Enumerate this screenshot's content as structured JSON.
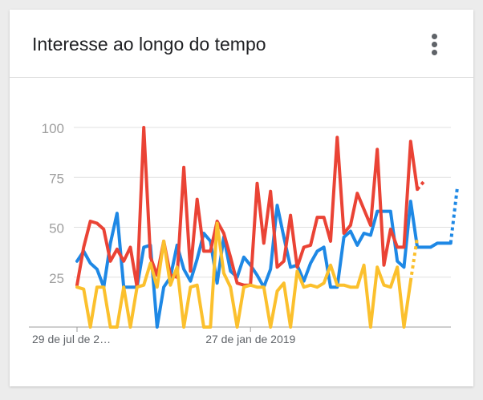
{
  "card": {
    "title": "Interesse ao longo do tempo",
    "menu_icon": "more-vert-icon"
  },
  "chart_data": {
    "type": "line",
    "title": "Interesse ao longo do tempo",
    "xlabel": "",
    "ylabel": "",
    "ylim": [
      0,
      100
    ],
    "yticks": [
      25,
      50,
      75,
      100
    ],
    "grid": true,
    "x_tick_labels": [
      {
        "index": 0,
        "label": "29 de jul de 2…"
      },
      {
        "index": 26,
        "label": "27 de jan de 2019"
      }
    ],
    "num_points": 58,
    "partial_last_point": true,
    "series": [
      {
        "color": "#1e88e5",
        "values": [
          33,
          38,
          32,
          29,
          20,
          42,
          57,
          20,
          20,
          20,
          40,
          41,
          0,
          20,
          25,
          41,
          29,
          23,
          34,
          47,
          43,
          22,
          45,
          28,
          25,
          35,
          31,
          26,
          20,
          29,
          61,
          45,
          30,
          31,
          23,
          32,
          38,
          40,
          20,
          20,
          45,
          48,
          41,
          47,
          46,
          58,
          58,
          58,
          33,
          30,
          63,
          40,
          40,
          40,
          42,
          42,
          42,
          70
        ]
      },
      {
        "color": "#ea4335",
        "values": [
          21,
          40,
          53,
          52,
          49,
          33,
          39,
          33,
          40,
          20,
          100,
          35,
          26,
          43,
          26,
          25,
          80,
          28,
          64,
          38,
          38,
          53,
          47,
          35,
          22,
          21,
          21,
          72,
          42,
          68,
          30,
          33,
          56,
          30,
          40,
          41,
          55,
          55,
          43,
          95,
          47,
          51,
          67,
          59,
          51,
          89,
          31,
          49,
          40,
          40,
          93,
          69,
          73,
          null,
          null,
          null,
          null,
          null
        ]
      },
      {
        "color": "#fbc02d",
        "values": [
          20,
          19,
          0,
          20,
          20,
          0,
          0,
          20,
          0,
          20,
          21,
          32,
          20,
          43,
          21,
          30,
          0,
          20,
          21,
          0,
          0,
          52,
          27,
          20,
          0,
          20,
          21,
          20,
          20,
          0,
          18,
          22,
          0,
          28,
          20,
          21,
          20,
          22,
          31,
          21,
          21,
          20,
          20,
          31,
          0,
          30,
          21,
          20,
          30,
          0,
          23,
          45,
          null,
          null,
          null,
          null,
          null,
          null
        ]
      }
    ]
  }
}
